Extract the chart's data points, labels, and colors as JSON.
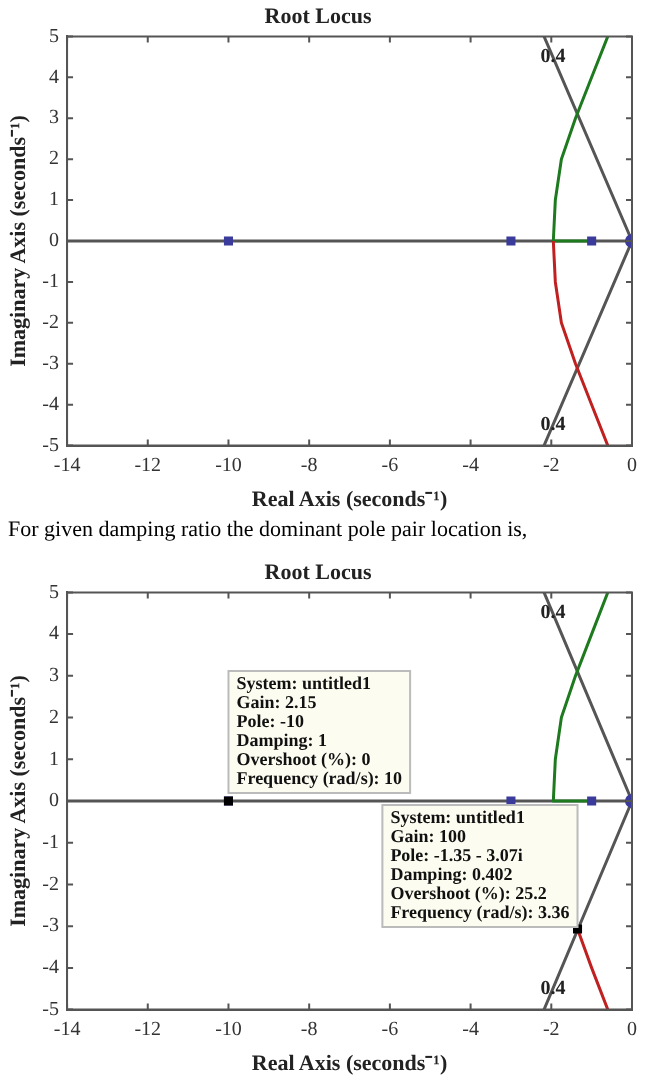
{
  "chart_data": [
    {
      "type": "line",
      "title": "Root Locus",
      "xlabel": "Real Axis (seconds⁻¹)",
      "ylabel": "Imaginary Axis (seconds⁻¹)",
      "xlim": [
        -14,
        0
      ],
      "xticks": [
        -14,
        -12,
        -10,
        -8,
        -6,
        -4,
        -2,
        0
      ],
      "ylim": [
        -5,
        5
      ],
      "yticks": [
        -5,
        -4,
        -3,
        -2,
        -1,
        0,
        1,
        2,
        3,
        4,
        5
      ],
      "grid": false,
      "legend": false,
      "series": [
        {
          "type": "line",
          "color": "#555555",
          "marker": "none",
          "x": [
            -14,
            0
          ],
          "values": [
            0,
            0
          ]
        },
        {
          "type": "line",
          "color": "#555555",
          "marker": "none",
          "x": [
            -2.18,
            0,
            -2.18
          ],
          "values": [
            5,
            0,
            -5
          ]
        },
        {
          "type": "line",
          "color": "#1e7a1e",
          "marker": "none",
          "x": [
            -1,
            -1.95,
            -1.9,
            -1.75,
            -1.4,
            -1,
            -0.6
          ],
          "values": [
            0,
            0,
            1,
            2,
            3,
            4,
            5
          ]
        },
        {
          "type": "line",
          "color": "#c02020",
          "marker": "none",
          "x": [
            -1.95,
            -1.9,
            -1.75,
            -1.4,
            -1,
            -0.6
          ],
          "values": [
            0,
            -1,
            -2,
            -3,
            -4,
            -5
          ]
        },
        {
          "type": "scatter",
          "color": "#3b3b9b",
          "marker": "square",
          "x": [
            -10,
            -3,
            -1
          ],
          "values": [
            0,
            0,
            0
          ]
        },
        {
          "type": "scatter",
          "color": "#3b3b9b",
          "marker": "circle",
          "x": [
            0
          ],
          "values": [
            0
          ]
        }
      ],
      "annotations": [
        {
          "text": "0.4",
          "x": -1.96,
          "y": 4.5
        },
        {
          "text": "0.4",
          "x": -1.96,
          "y": -4.5
        },
        "For given damping ratio the dominant pole pair location is,"
      ]
    },
    {
      "type": "line",
      "title": "Root Locus",
      "xlabel": "Real Axis (seconds⁻¹)",
      "ylabel": "Imaginary Axis (seconds⁻¹)",
      "xlim": [
        -14,
        0
      ],
      "xticks": [
        -14,
        -12,
        -10,
        -8,
        -6,
        -4,
        -2,
        0
      ],
      "ylim": [
        -5,
        5
      ],
      "yticks": [
        -5,
        -4,
        -3,
        -2,
        -1,
        0,
        1,
        2,
        3,
        4,
        5
      ],
      "grid": false,
      "legend": false,
      "series": [
        {
          "type": "line",
          "color": "#555555",
          "marker": "none",
          "x": [
            -14,
            0
          ],
          "values": [
            0,
            0
          ]
        },
        {
          "type": "line",
          "color": "#555555",
          "marker": "none",
          "x": [
            -2.18,
            0,
            -2.18
          ],
          "values": [
            5,
            0,
            -5
          ]
        },
        {
          "type": "line",
          "color": "#1e7a1e",
          "marker": "none",
          "x": [
            -1,
            -1.95,
            -1.9,
            -1.75,
            -1.4,
            -1,
            -0.6
          ],
          "values": [
            0,
            0,
            1,
            2,
            3,
            4,
            5
          ]
        },
        {
          "type": "line",
          "color": "#c02020",
          "marker": "none",
          "x": [
            -1.35,
            -1,
            -0.6
          ],
          "values": [
            -3.07,
            -4,
            -5
          ]
        },
        {
          "type": "scatter",
          "color": "#3b3b9b",
          "marker": "square",
          "x": [
            -10,
            -3,
            -1
          ],
          "values": [
            0,
            0,
            0
          ]
        },
        {
          "type": "scatter",
          "color": "#3b3b9b",
          "marker": "circle",
          "x": [
            0
          ],
          "values": [
            0
          ]
        },
        {
          "type": "scatter",
          "color": "#000000",
          "marker": "square",
          "x": [
            -10,
            -1.35
          ],
          "values": [
            0,
            -3.07
          ]
        }
      ],
      "annotations": [
        {
          "text": "0.4",
          "x": -1.96,
          "y": 4.5
        },
        {
          "text": "0.4",
          "x": -1.96,
          "y": -4.5
        },
        {
          "text": "System: untitled1\nGain: 2.15\nPole: -10\nDamping: 1\nOvershoot (%): 0\nFrequency (rad/s): 10",
          "x": -10,
          "y": 0
        },
        {
          "text": "System: untitled1\nGain: 100\nPole: -1.35 - 3.07i\nDamping: 0.402\nOvershoot (%): 25.2\nFrequency (rad/s): 3.36",
          "x": -1.35,
          "y": -3.07
        }
      ]
    }
  ]
}
